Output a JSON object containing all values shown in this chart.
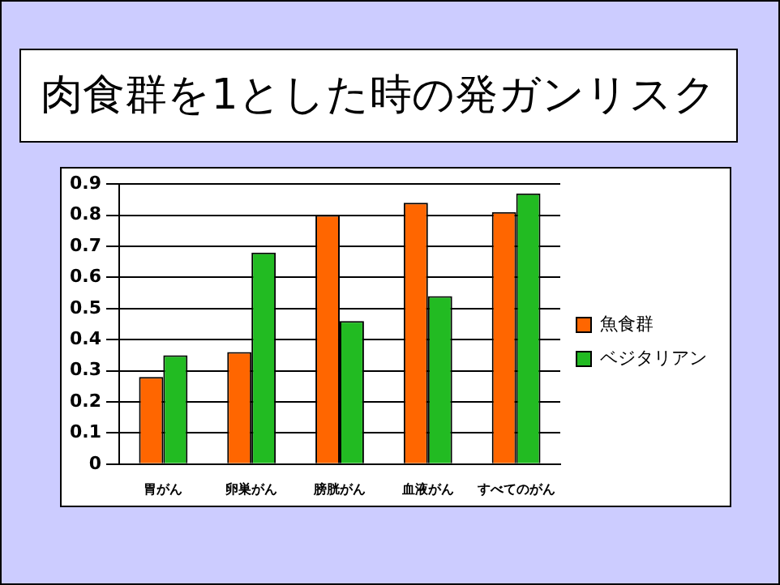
{
  "chart_data": {
    "type": "bar",
    "title": "肉食群を1とした時の発ガンリスク",
    "categories": [
      "胃がん",
      "卵巣がん",
      "膀胱がん",
      "血液がん",
      "すべてのがん"
    ],
    "series": [
      {
        "name": "魚食群",
        "color": "#ff6600",
        "values": [
          0.28,
          0.36,
          0.8,
          0.84,
          0.81
        ]
      },
      {
        "name": "ベジタリアン",
        "color": "#22bb22",
        "values": [
          0.35,
          0.68,
          0.46,
          0.54,
          0.87
        ]
      }
    ],
    "ylim": [
      0,
      0.9
    ],
    "yticks": [
      0,
      0.1,
      0.2,
      0.3,
      0.4,
      0.5,
      0.6,
      0.7,
      0.8,
      0.9
    ],
    "grid": "y",
    "legend": "right"
  }
}
